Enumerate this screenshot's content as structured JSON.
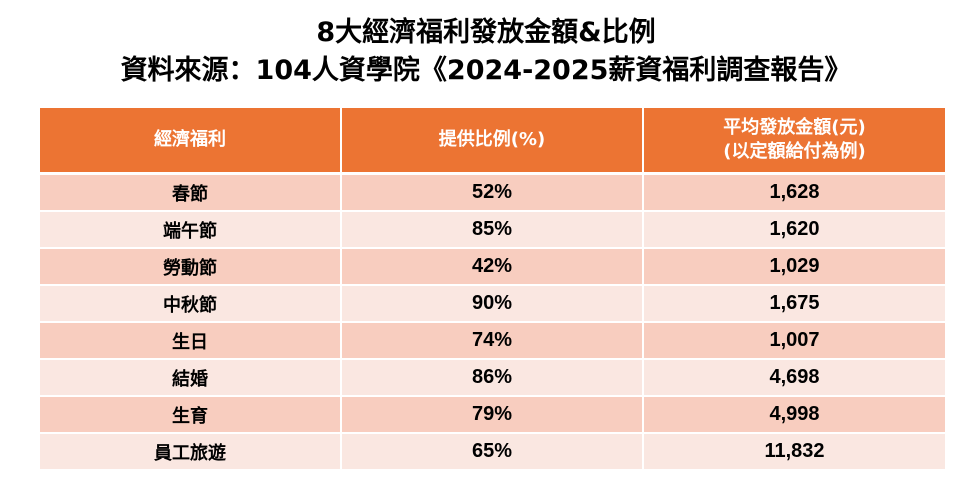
{
  "title": {
    "line1": "8大經濟福利發放金額&比例",
    "line2": "資料來源：104人資學院《2024-2025薪資福利調查報告》"
  },
  "table": {
    "headers": {
      "benefit": "經濟福利",
      "ratio": "提供比例(%)",
      "amount_line1": "平均發放金額(元)",
      "amount_line2": "(以定額給付為例)"
    },
    "rows": [
      {
        "benefit": "春節",
        "ratio": "52%",
        "amount": "1,628"
      },
      {
        "benefit": "端午節",
        "ratio": "85%",
        "amount": "1,620"
      },
      {
        "benefit": "勞動節",
        "ratio": "42%",
        "amount": "1,029"
      },
      {
        "benefit": "中秋節",
        "ratio": "90%",
        "amount": "1,675"
      },
      {
        "benefit": "生日",
        "ratio": "74%",
        "amount": "1,007"
      },
      {
        "benefit": "結婚",
        "ratio": "86%",
        "amount": "4,698"
      },
      {
        "benefit": "生育",
        "ratio": "79%",
        "amount": "4,998"
      },
      {
        "benefit": "員工旅遊",
        "ratio": "65%",
        "amount": "11,832"
      }
    ]
  },
  "colors": {
    "header_bg": "#ec7433",
    "row_odd": "#f8cdbf",
    "row_even": "#fae7e1"
  }
}
